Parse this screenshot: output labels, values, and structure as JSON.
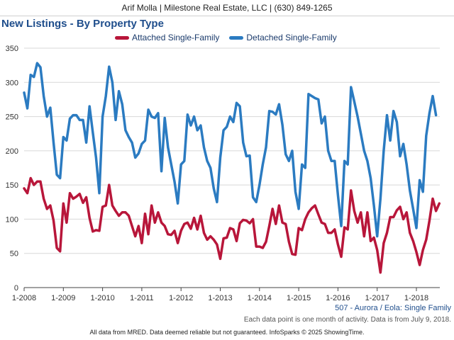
{
  "header": {
    "text": "Arif Molla | Milestone Real Estate, LLC | (630) 849-1265"
  },
  "footer": {
    "region": "507 - Aurora / Eola: Single Family",
    "note": "Each data point is one month of activity. Data is from July 9, 2018.",
    "disclaimer": "All data from MRED. Data deemed reliable but not guaranteed. InfoSparks © 2025 ShowingTime."
  },
  "chart_data": {
    "type": "line",
    "title": "New Listings - By Property Type",
    "xlabel": "",
    "ylabel": "",
    "ylim": [
      0,
      350
    ],
    "yticks": [
      0,
      50,
      100,
      150,
      200,
      250,
      300,
      350
    ],
    "xticks": [
      "1-2008",
      "1-2009",
      "1-2010",
      "1-2011",
      "1-2012",
      "1-2013",
      "1-2014",
      "1-2015",
      "1-2016",
      "1-2017",
      "1-2018"
    ],
    "x_start": "2008-01",
    "grid": true,
    "legend_position": "top",
    "series": [
      {
        "name": "Attached Single-Family",
        "color": "#b8163a",
        "values": [
          145,
          138,
          160,
          150,
          155,
          155,
          130,
          115,
          120,
          98,
          58,
          53,
          123,
          95,
          138,
          130,
          133,
          137,
          124,
          132,
          102,
          82,
          84,
          83,
          118,
          120,
          150,
          120,
          112,
          105,
          110,
          110,
          105,
          90,
          75,
          90,
          65,
          108,
          78,
          120,
          95,
          110,
          95,
          90,
          78,
          77,
          83,
          65,
          83,
          93,
          95,
          86,
          102,
          85,
          105,
          80,
          70,
          75,
          70,
          63,
          42,
          72,
          73,
          87,
          85,
          68,
          94,
          99,
          98,
          94,
          100,
          60,
          60,
          58,
          67,
          90,
          115,
          93,
          120,
          95,
          93,
          67,
          49,
          48,
          87,
          84,
          100,
          110,
          116,
          120,
          107,
          95,
          93,
          80,
          80,
          85,
          63,
          45,
          88,
          85,
          142,
          112,
          95,
          110,
          75,
          110,
          68,
          73,
          55,
          22,
          65,
          80,
          103,
          103,
          113,
          118,
          100,
          110,
          80,
          68,
          52,
          33,
          55,
          70,
          98,
          130,
          112,
          123
        ]
      },
      {
        "name": "Detached Single-Family",
        "color": "#2b7bc1",
        "values": [
          285,
          262,
          311,
          308,
          328,
          322,
          280,
          250,
          263,
          212,
          165,
          160,
          220,
          215,
          247,
          252,
          252,
          245,
          245,
          212,
          265,
          227,
          190,
          138,
          250,
          280,
          323,
          300,
          245,
          287,
          268,
          230,
          220,
          212,
          190,
          196,
          210,
          215,
          260,
          250,
          248,
          255,
          170,
          248,
          205,
          180,
          155,
          123,
          180,
          185,
          253,
          237,
          250,
          230,
          237,
          205,
          185,
          175,
          145,
          125,
          190,
          230,
          235,
          250,
          242,
          270,
          265,
          212,
          192,
          193,
          132,
          125,
          150,
          180,
          205,
          258,
          257,
          253,
          268,
          238,
          195,
          185,
          200,
          140,
          115,
          180,
          175,
          283,
          280,
          277,
          275,
          240,
          250,
          200,
          185,
          185,
          135,
          90,
          185,
          180,
          293,
          272,
          250,
          225,
          200,
          185,
          160,
          120,
          75,
          130,
          200,
          252,
          215,
          258,
          242,
          192,
          210,
          180,
          142,
          115,
          87,
          157,
          140,
          222,
          255,
          280,
          252
        ]
      }
    ]
  }
}
